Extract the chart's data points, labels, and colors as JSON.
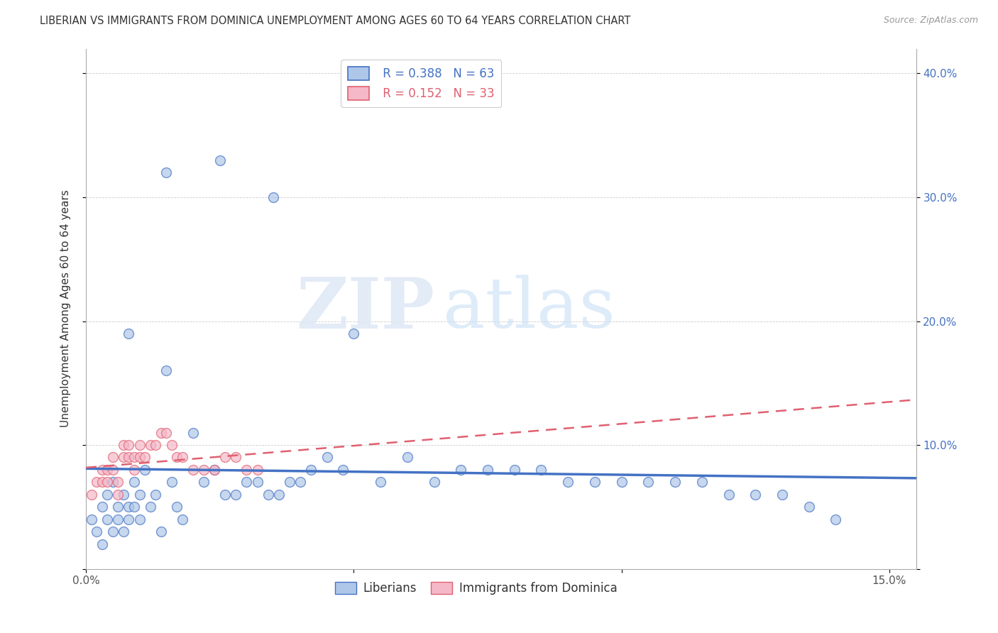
{
  "title": "LIBERIAN VS IMMIGRANTS FROM DOMINICA UNEMPLOYMENT AMONG AGES 60 TO 64 YEARS CORRELATION CHART",
  "source": "Source: ZipAtlas.com",
  "ylabel": "Unemployment Among Ages 60 to 64 years",
  "xlim": [
    0.0,
    0.155
  ],
  "ylim": [
    0.0,
    0.42
  ],
  "xticks": [
    0.0,
    0.05,
    0.1,
    0.15
  ],
  "xticklabels": [
    "0.0%",
    "",
    "",
    "15.0%"
  ],
  "yticks": [
    0.0,
    0.1,
    0.2,
    0.3,
    0.4
  ],
  "yticklabels_left": [
    "",
    "",
    "",
    "",
    ""
  ],
  "yticklabels_right": [
    "",
    "10.0%",
    "20.0%",
    "30.0%",
    "40.0%"
  ],
  "legend_r1": "R = 0.388",
  "legend_n1": "N = 63",
  "legend_r2": "R = 0.152",
  "legend_n2": "N = 33",
  "color_liberian": "#aec6e8",
  "color_dominica": "#f4b8c8",
  "color_liberian_line": "#4472c4",
  "color_dominica_line": "#e06070",
  "watermark_zip": "ZIP",
  "watermark_atlas": "atlas",
  "liberian_x": [
    0.001,
    0.002,
    0.003,
    0.003,
    0.004,
    0.004,
    0.005,
    0.005,
    0.006,
    0.006,
    0.007,
    0.007,
    0.008,
    0.008,
    0.009,
    0.009,
    0.01,
    0.01,
    0.011,
    0.012,
    0.013,
    0.014,
    0.015,
    0.016,
    0.017,
    0.018,
    0.02,
    0.022,
    0.024,
    0.026,
    0.028,
    0.03,
    0.032,
    0.034,
    0.036,
    0.038,
    0.04,
    0.042,
    0.045,
    0.048,
    0.05,
    0.055,
    0.06,
    0.065,
    0.07,
    0.075,
    0.08,
    0.085,
    0.09,
    0.095,
    0.1,
    0.105,
    0.11,
    0.115,
    0.12,
    0.125,
    0.13,
    0.135,
    0.14,
    0.008,
    0.015,
    0.025,
    0.035
  ],
  "liberian_y": [
    0.04,
    0.03,
    0.05,
    0.02,
    0.04,
    0.06,
    0.03,
    0.07,
    0.05,
    0.04,
    0.06,
    0.03,
    0.05,
    0.04,
    0.07,
    0.05,
    0.06,
    0.04,
    0.08,
    0.05,
    0.06,
    0.03,
    0.16,
    0.07,
    0.05,
    0.04,
    0.11,
    0.07,
    0.08,
    0.06,
    0.06,
    0.07,
    0.07,
    0.06,
    0.06,
    0.07,
    0.07,
    0.08,
    0.09,
    0.08,
    0.19,
    0.07,
    0.09,
    0.07,
    0.08,
    0.08,
    0.08,
    0.08,
    0.07,
    0.07,
    0.07,
    0.07,
    0.07,
    0.07,
    0.06,
    0.06,
    0.06,
    0.05,
    0.04,
    0.19,
    0.32,
    0.33,
    0.3
  ],
  "dominica_x": [
    0.001,
    0.002,
    0.003,
    0.003,
    0.004,
    0.004,
    0.005,
    0.005,
    0.006,
    0.006,
    0.007,
    0.007,
    0.008,
    0.008,
    0.009,
    0.009,
    0.01,
    0.01,
    0.011,
    0.012,
    0.013,
    0.014,
    0.015,
    0.016,
    0.017,
    0.018,
    0.02,
    0.022,
    0.024,
    0.026,
    0.028,
    0.03,
    0.032
  ],
  "dominica_y": [
    0.06,
    0.07,
    0.07,
    0.08,
    0.07,
    0.08,
    0.08,
    0.09,
    0.06,
    0.07,
    0.09,
    0.1,
    0.09,
    0.1,
    0.08,
    0.09,
    0.1,
    0.09,
    0.09,
    0.1,
    0.1,
    0.11,
    0.11,
    0.1,
    0.09,
    0.09,
    0.08,
    0.08,
    0.08,
    0.09,
    0.09,
    0.08,
    0.08
  ]
}
